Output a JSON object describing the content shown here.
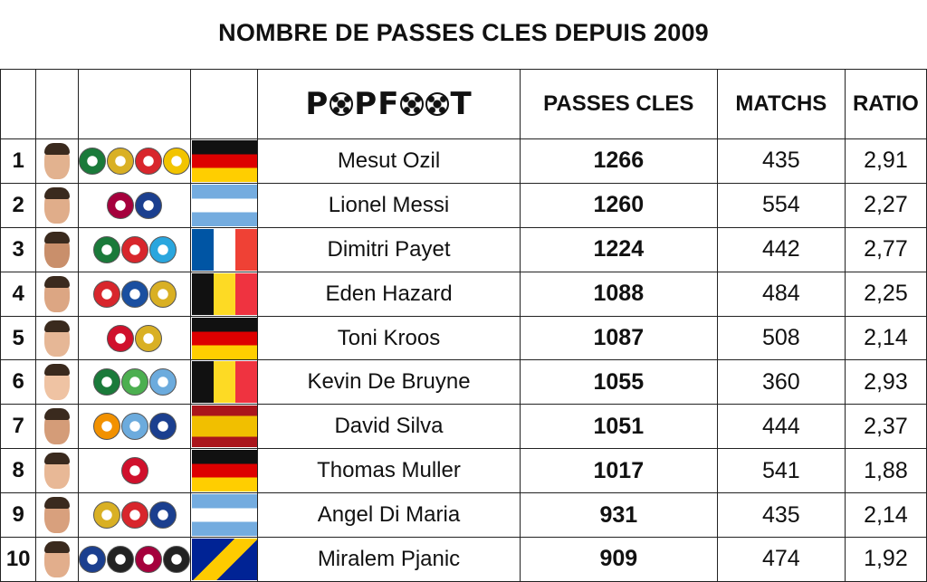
{
  "title": "NOMBRE DE PASSES CLES DEPUIS 2009",
  "logo": "POPFOOT",
  "chart_data": {
    "type": "table",
    "title": "NOMBRE DE PASSES CLES DEPUIS 2009",
    "columns": [
      "PASSES CLES",
      "MATCHS",
      "RATIO"
    ],
    "rows": [
      {
        "rank": "1",
        "name": "Mesut Ozil",
        "passes": "1266",
        "matchs": "435",
        "ratio": "2,91",
        "face": "#e2b28f",
        "crests": [
          "#1a7a3a",
          "#d9b024",
          "#d8262c",
          "#f2c400"
        ],
        "flag": "germany"
      },
      {
        "rank": "2",
        "name": "Lionel Messi",
        "passes": "1260",
        "matchs": "554",
        "ratio": "2,27",
        "face": "#e0ad8a",
        "crests": [
          "#a5003c",
          "#1b3f8f"
        ],
        "flag": "argentina"
      },
      {
        "rank": "3",
        "name": "Dimitri Payet",
        "passes": "1224",
        "matchs": "442",
        "ratio": "2,77",
        "face": "#c98f6b",
        "crests": [
          "#1a7a3a",
          "#d8262c",
          "#2aa6de"
        ],
        "flag": "france"
      },
      {
        "rank": "4",
        "name": "Eden Hazard",
        "passes": "1088",
        "matchs": "484",
        "ratio": "2,25",
        "face": "#dca683",
        "crests": [
          "#d8262c",
          "#1a4fa0",
          "#d9b024"
        ],
        "flag": "belgium"
      },
      {
        "rank": "5",
        "name": "Toni Kroos",
        "passes": "1087",
        "matchs": "508",
        "ratio": "2,14",
        "face": "#e6b796",
        "crests": [
          "#d0102c",
          "#d9b024"
        ],
        "flag": "germany"
      },
      {
        "rank": "6",
        "name": "Kevin De Bruyne",
        "passes": "1055",
        "matchs": "360",
        "ratio": "2,93",
        "face": "#efc3a3",
        "crests": [
          "#1a7a3a",
          "#4caf50",
          "#6cabdd"
        ],
        "flag": "belgium"
      },
      {
        "rank": "7",
        "name": "David Silva",
        "passes": "1051",
        "matchs": "444",
        "ratio": "2,37",
        "face": "#d49c78",
        "crests": [
          "#f29100",
          "#6cabdd",
          "#1b3f8f"
        ],
        "flag": "spain"
      },
      {
        "rank": "8",
        "name": "Thomas Muller",
        "passes": "1017",
        "matchs": "541",
        "ratio": "1,88",
        "face": "#e8b896",
        "crests": [
          "#d0102c"
        ],
        "flag": "germany"
      },
      {
        "rank": "9",
        "name": "Angel Di Maria",
        "passes": "931",
        "matchs": "435",
        "ratio": "2,14",
        "face": "#d8a07d",
        "crests": [
          "#d9b024",
          "#d8262c",
          "#1b3f8f"
        ],
        "flag": "argentina"
      },
      {
        "rank": "10",
        "name": "Miralem Pjanic",
        "passes": "909",
        "matchs": "474",
        "ratio": "1,92",
        "face": "#e2ae8c",
        "crests": [
          "#1b3f8f",
          "#222222",
          "#a5003c",
          "#222222"
        ],
        "flag": "bosnia"
      }
    ]
  }
}
